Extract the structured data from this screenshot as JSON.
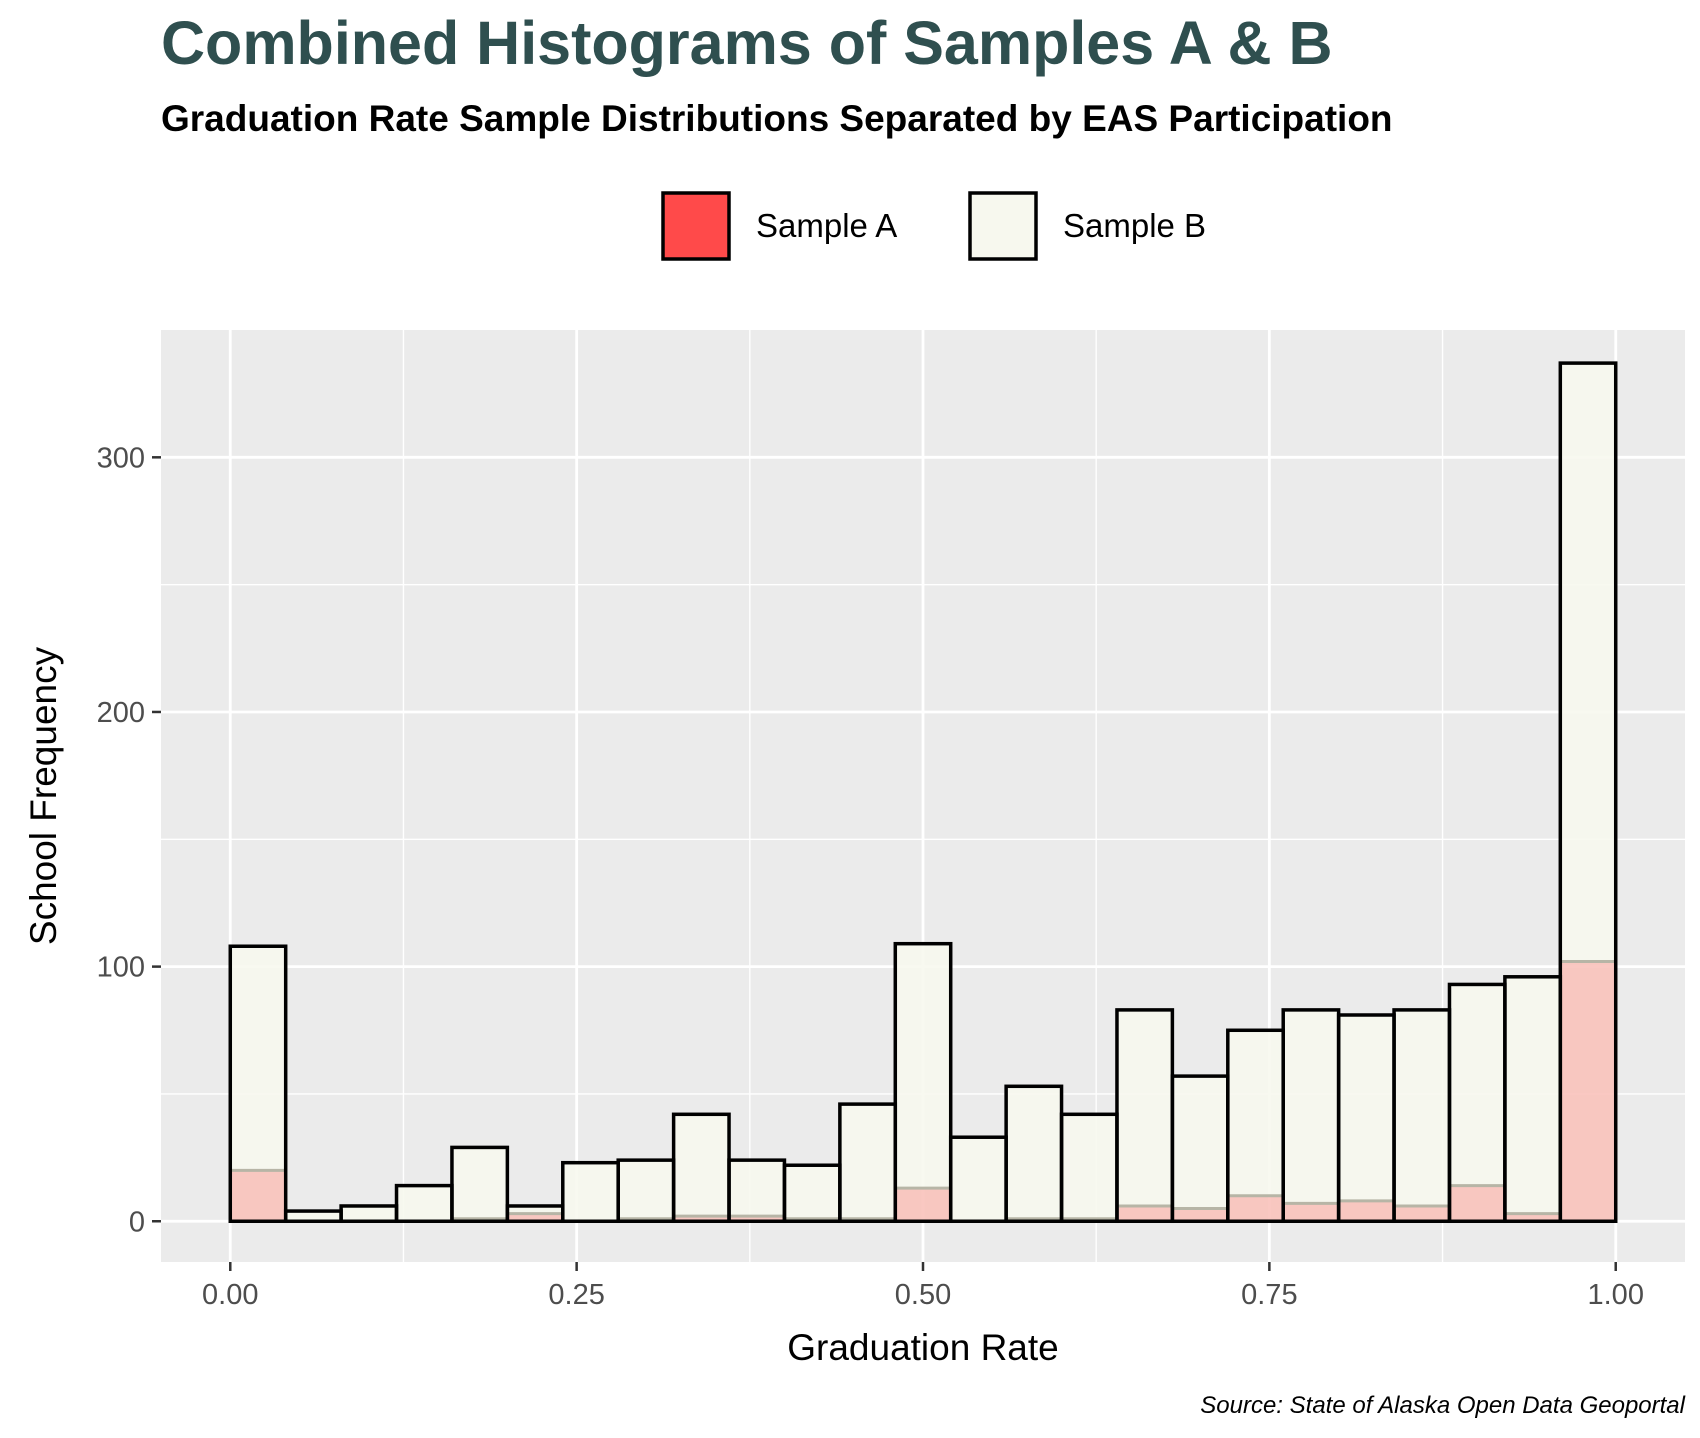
{
  "chart_data": {
    "type": "bar",
    "title": "Combined Histograms of Samples A & B",
    "subtitle": "Graduation Rate Sample Distributions Separated by EAS Participation",
    "xlabel": "Graduation Rate",
    "ylabel": "School Frequency",
    "caption": "Source: State of Alaska Open Data Geoportal",
    "xlim": [
      -0.05,
      1.05
    ],
    "ylim": [
      -16,
      350
    ],
    "bin_width": 0.04,
    "bin_start": 0.0,
    "x_ticks": [
      0.0,
      0.25,
      0.5,
      0.75,
      1.0
    ],
    "x_tick_labels": [
      "0.00",
      "0.25",
      "0.50",
      "0.75",
      "1.00"
    ],
    "y_ticks": [
      0,
      100,
      200,
      300
    ],
    "y_tick_labels": [
      "0",
      "100",
      "200",
      "300"
    ],
    "grid": true,
    "legend_position": "top",
    "series": [
      {
        "name": "Sample A",
        "color": "#FF4A4A",
        "values": [
          20,
          0,
          0,
          0,
          1,
          3,
          0,
          1,
          2,
          2,
          1,
          1,
          13,
          0,
          1,
          1,
          6,
          5,
          10,
          7,
          8,
          6,
          14,
          3,
          102
        ]
      },
      {
        "name": "Sample B",
        "color": "#F7F8EE",
        "values": [
          108,
          4,
          6,
          14,
          29,
          6,
          23,
          24,
          42,
          24,
          22,
          46,
          109,
          33,
          53,
          42,
          83,
          57,
          75,
          83,
          81,
          83,
          93,
          96,
          337
        ]
      }
    ]
  },
  "legend": {
    "items": [
      {
        "label": "Sample A",
        "color": "#FF4A4A"
      },
      {
        "label": "Sample B",
        "color": "#F7F8EE"
      }
    ]
  }
}
